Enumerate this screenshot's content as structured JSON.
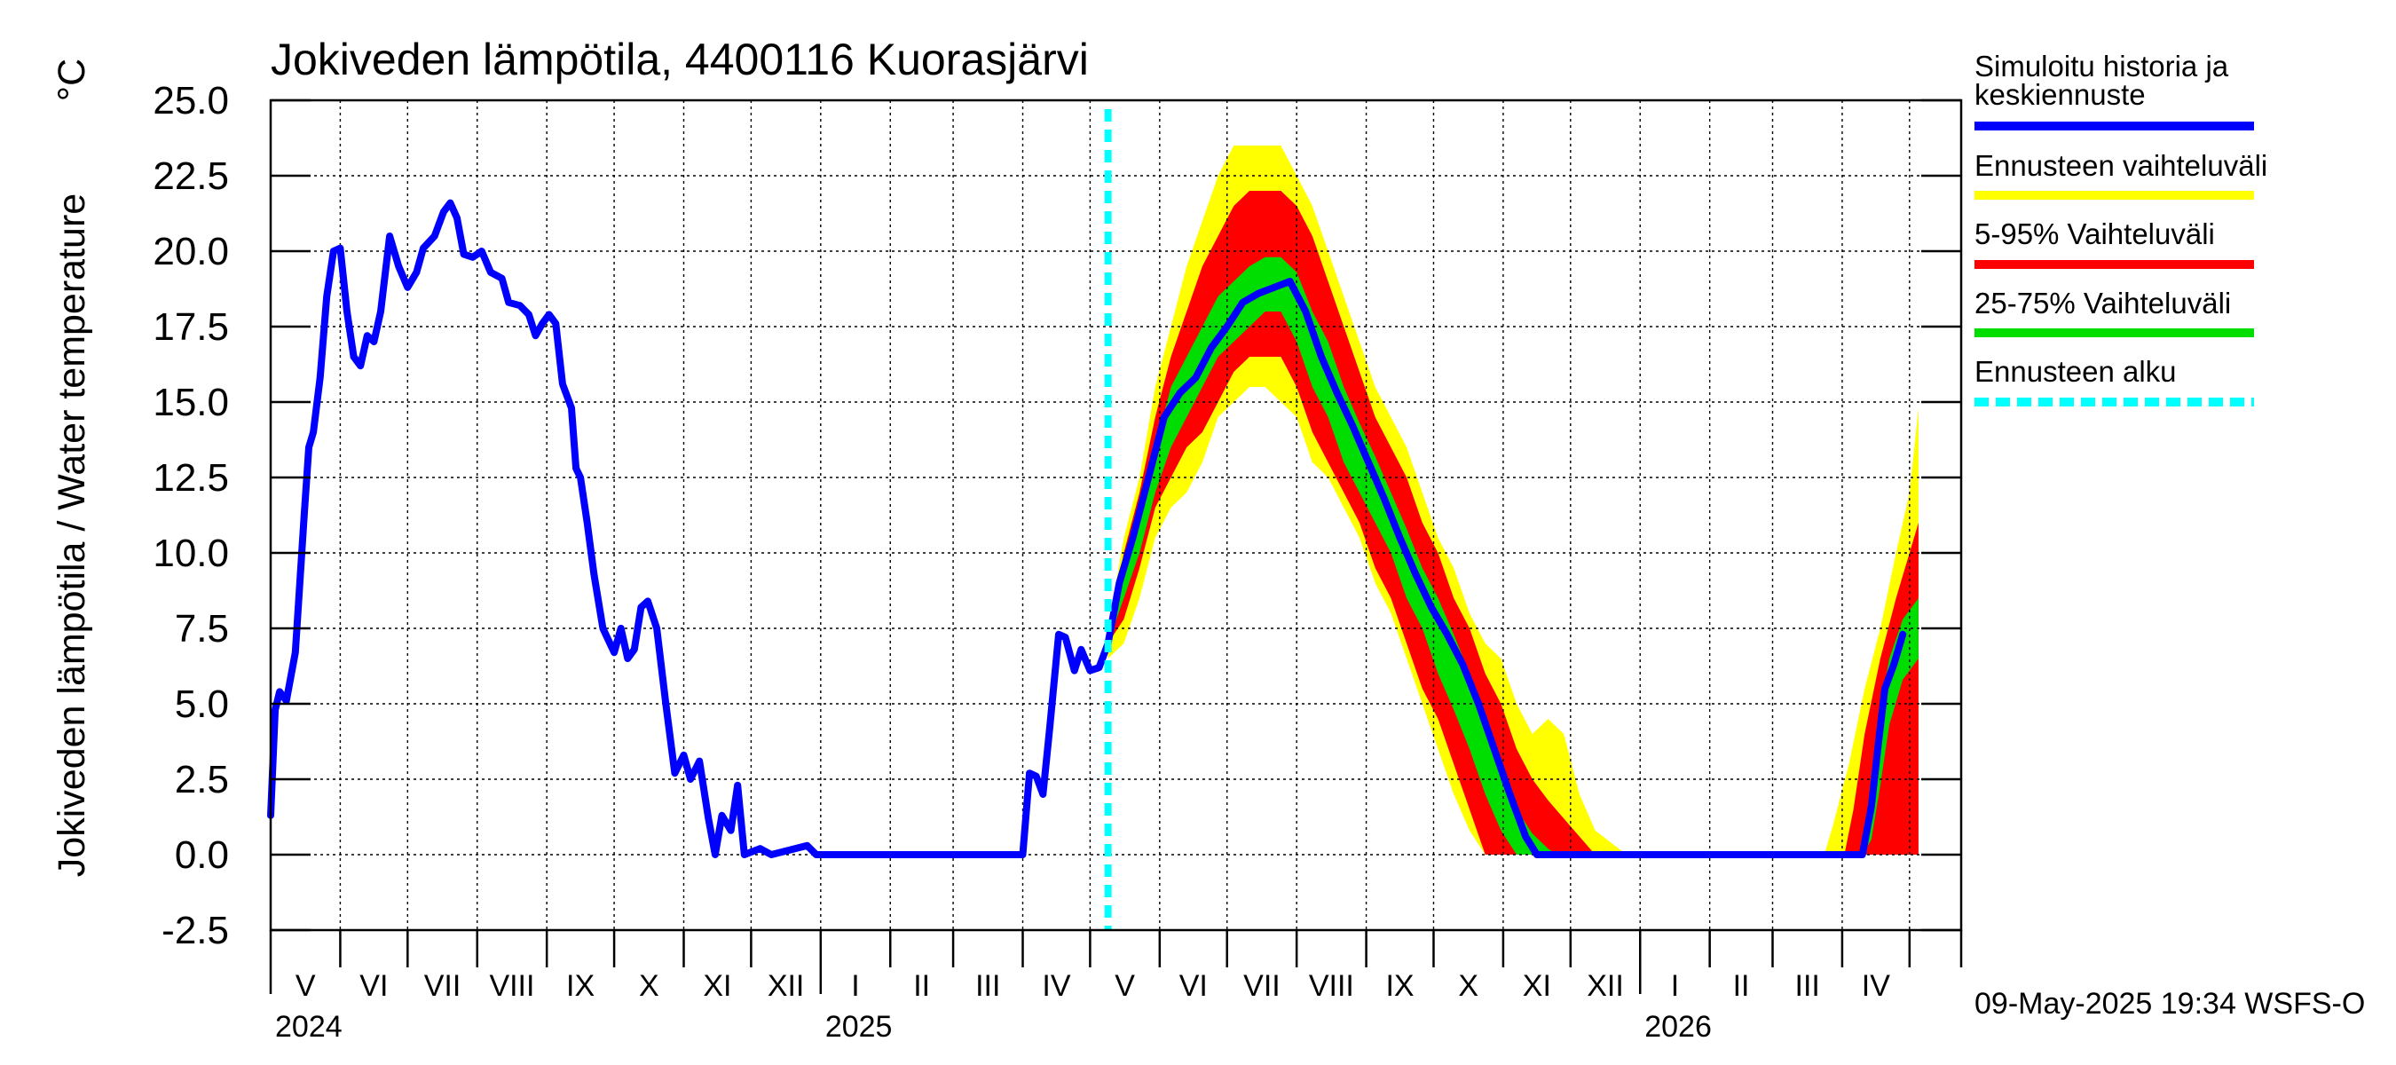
{
  "chart_data": {
    "type": "area",
    "title": "Jokiveden lämpötila, 4400116 Kuorasjärvi",
    "ylabel": "Jokiveden lämpötila / Water temperature",
    "yunit": "°C",
    "ylim": [
      -2.5,
      25.0
    ],
    "yticks": [
      "25.0",
      "22.5",
      "20.0",
      "17.5",
      "15.0",
      "12.5",
      "10.0",
      "7.5",
      "5.0",
      "2.5",
      "0.0",
      "-2.5"
    ],
    "xlim": [
      "2024-05-01",
      "2026-05-24"
    ],
    "month_labels": [
      "V",
      "VI",
      "VII",
      "VIII",
      "IX",
      "X",
      "XI",
      "XII",
      "I",
      "II",
      "III",
      "IV",
      "V",
      "VI",
      "VII",
      "VIII",
      "IX",
      "X",
      "XI",
      "XII",
      "I",
      "II",
      "III",
      "IV"
    ],
    "year_labels": [
      "2024",
      "2025",
      "2026"
    ],
    "grid": true,
    "legend_position": "right",
    "legend": [
      {
        "label": "Simuloitu historia ja keskiennuste",
        "color": "#0000ff",
        "style": "solid"
      },
      {
        "label": "Ennusteen vaihteluväli",
        "color": "#ffff00",
        "style": "solid"
      },
      {
        "label": "5-95% Vaihteluväli",
        "color": "#ff0000",
        "style": "solid"
      },
      {
        "label": "25-75% Vaihteluväli",
        "color": "#00dd00",
        "style": "solid"
      },
      {
        "label": "Ennusteen alku",
        "color": "#00ffff",
        "style": "dashed"
      }
    ],
    "forecast_start": "2025-05-09",
    "footer": "09-May-2025 19:34 WSFS-O",
    "series": [
      {
        "name": "Simuloitu historia ja keskiennuste",
        "points": [
          [
            "2024-05-01",
            1.3
          ],
          [
            "2024-05-03",
            4.8
          ],
          [
            "2024-05-05",
            5.4
          ],
          [
            "2024-05-08",
            5.1
          ],
          [
            "2024-05-12",
            6.7
          ],
          [
            "2024-05-16",
            11.3
          ],
          [
            "2024-05-18",
            13.5
          ],
          [
            "2024-05-20",
            14.0
          ],
          [
            "2024-05-23",
            15.8
          ],
          [
            "2024-05-26",
            18.5
          ],
          [
            "2024-05-29",
            20.0
          ],
          [
            "2024-06-01",
            20.1
          ],
          [
            "2024-06-04",
            18.0
          ],
          [
            "2024-06-07",
            16.5
          ],
          [
            "2024-06-10",
            16.2
          ],
          [
            "2024-06-13",
            17.2
          ],
          [
            "2024-06-16",
            17.0
          ],
          [
            "2024-06-19",
            18.0
          ],
          [
            "2024-06-23",
            20.5
          ],
          [
            "2024-06-27",
            19.5
          ],
          [
            "2024-07-01",
            18.8
          ],
          [
            "2024-07-05",
            19.3
          ],
          [
            "2024-07-08",
            20.1
          ],
          [
            "2024-07-13",
            20.5
          ],
          [
            "2024-07-17",
            21.3
          ],
          [
            "2024-07-20",
            21.6
          ],
          [
            "2024-07-23",
            21.1
          ],
          [
            "2024-07-26",
            19.9
          ],
          [
            "2024-07-30",
            19.8
          ],
          [
            "2024-08-03",
            20.0
          ],
          [
            "2024-08-07",
            19.3
          ],
          [
            "2024-08-12",
            19.1
          ],
          [
            "2024-08-15",
            18.3
          ],
          [
            "2024-08-20",
            18.2
          ],
          [
            "2024-08-24",
            17.9
          ],
          [
            "2024-08-27",
            17.2
          ],
          [
            "2024-08-30",
            17.6
          ],
          [
            "2024-09-02",
            17.9
          ],
          [
            "2024-09-05",
            17.6
          ],
          [
            "2024-09-08",
            15.6
          ],
          [
            "2024-09-12",
            14.8
          ],
          [
            "2024-09-14",
            12.8
          ],
          [
            "2024-09-16",
            12.5
          ],
          [
            "2024-09-19",
            11.0
          ],
          [
            "2024-09-22",
            9.3
          ],
          [
            "2024-09-26",
            7.5
          ],
          [
            "2024-10-01",
            6.7
          ],
          [
            "2024-10-04",
            7.5
          ],
          [
            "2024-10-07",
            6.5
          ],
          [
            "2024-10-10",
            6.8
          ],
          [
            "2024-10-13",
            8.2
          ],
          [
            "2024-10-16",
            8.4
          ],
          [
            "2024-10-20",
            7.5
          ],
          [
            "2024-10-24",
            5.0
          ],
          [
            "2024-10-28",
            2.7
          ],
          [
            "2024-11-01",
            3.3
          ],
          [
            "2024-11-04",
            2.5
          ],
          [
            "2024-11-08",
            3.1
          ],
          [
            "2024-11-12",
            1.2
          ],
          [
            "2024-11-15",
            0.0
          ],
          [
            "2024-11-18",
            1.3
          ],
          [
            "2024-11-22",
            0.8
          ],
          [
            "2024-11-25",
            2.3
          ],
          [
            "2024-11-28",
            0.0
          ],
          [
            "2024-12-05",
            0.2
          ],
          [
            "2024-12-10",
            0.0
          ],
          [
            "2024-12-26",
            0.3
          ],
          [
            "2024-12-30",
            0.0
          ],
          [
            "2025-04-01",
            0.0
          ],
          [
            "2025-04-04",
            2.7
          ],
          [
            "2025-04-07",
            2.6
          ],
          [
            "2025-04-10",
            2.0
          ],
          [
            "2025-04-13",
            4.2
          ],
          [
            "2025-04-17",
            7.3
          ],
          [
            "2025-04-20",
            7.2
          ],
          [
            "2025-04-24",
            6.1
          ],
          [
            "2025-04-27",
            6.8
          ],
          [
            "2025-05-01",
            6.1
          ],
          [
            "2025-05-05",
            6.2
          ],
          [
            "2025-05-09",
            7.0
          ],
          [
            "2025-05-14",
            9.0
          ],
          [
            "2025-05-20",
            10.5
          ],
          [
            "2025-05-27",
            12.5
          ],
          [
            "2025-06-03",
            14.5
          ],
          [
            "2025-06-10",
            15.3
          ],
          [
            "2025-06-17",
            15.8
          ],
          [
            "2025-06-24",
            16.8
          ],
          [
            "2025-07-01",
            17.5
          ],
          [
            "2025-07-08",
            18.3
          ],
          [
            "2025-07-15",
            18.6
          ],
          [
            "2025-07-22",
            18.8
          ],
          [
            "2025-07-29",
            19.0
          ],
          [
            "2025-08-05",
            18.0
          ],
          [
            "2025-08-12",
            16.5
          ],
          [
            "2025-08-19",
            15.3
          ],
          [
            "2025-08-26",
            14.2
          ],
          [
            "2025-09-02",
            13.0
          ],
          [
            "2025-09-09",
            11.8
          ],
          [
            "2025-09-16",
            10.5
          ],
          [
            "2025-09-23",
            9.3
          ],
          [
            "2025-09-30",
            8.2
          ],
          [
            "2025-10-07",
            7.3
          ],
          [
            "2025-10-14",
            6.3
          ],
          [
            "2025-10-21",
            5.0
          ],
          [
            "2025-10-28",
            3.5
          ],
          [
            "2025-11-04",
            2.0
          ],
          [
            "2025-11-11",
            0.6
          ],
          [
            "2025-11-16",
            0.0
          ],
          [
            "2026-04-10",
            0.0
          ],
          [
            "2026-04-14",
            1.6
          ],
          [
            "2026-04-17",
            3.6
          ],
          [
            "2026-04-20",
            5.5
          ],
          [
            "2026-04-24",
            6.3
          ],
          [
            "2026-04-28",
            7.3
          ]
        ]
      },
      {
        "name": "Ennusteen vaihteluväli",
        "bounds": [
          [
            "2025-05-09",
            6.5,
            7.5
          ],
          [
            "2025-05-16",
            7.0,
            10.5
          ],
          [
            "2025-05-23",
            8.5,
            12.5
          ],
          [
            "2025-05-30",
            10.5,
            15.5
          ],
          [
            "2025-06-06",
            11.5,
            17.5
          ],
          [
            "2025-06-13",
            12.0,
            19.5
          ],
          [
            "2025-06-20",
            13.0,
            21.0
          ],
          [
            "2025-06-27",
            14.5,
            22.5
          ],
          [
            "2025-07-04",
            15.0,
            23.5
          ],
          [
            "2025-07-11",
            15.5,
            23.5
          ],
          [
            "2025-07-18",
            15.5,
            23.5
          ],
          [
            "2025-07-25",
            15.0,
            23.5
          ],
          [
            "2025-08-01",
            14.5,
            22.5
          ],
          [
            "2025-08-08",
            13.0,
            21.5
          ],
          [
            "2025-08-15",
            12.5,
            20.0
          ],
          [
            "2025-08-22",
            11.5,
            18.5
          ],
          [
            "2025-08-29",
            10.5,
            17.0
          ],
          [
            "2025-09-05",
            9.0,
            15.5
          ],
          [
            "2025-09-12",
            8.0,
            14.5
          ],
          [
            "2025-09-19",
            6.5,
            13.5
          ],
          [
            "2025-09-26",
            5.0,
            12.0
          ],
          [
            "2025-10-03",
            3.5,
            10.5
          ],
          [
            "2025-10-10",
            2.0,
            9.5
          ],
          [
            "2025-10-17",
            0.8,
            8.0
          ],
          [
            "2025-10-24",
            0.0,
            7.0
          ],
          [
            "2025-10-31",
            0.0,
            6.5
          ],
          [
            "2025-11-07",
            0.0,
            5.0
          ],
          [
            "2025-11-14",
            0.0,
            4.0
          ],
          [
            "2025-11-21",
            0.0,
            4.5
          ],
          [
            "2025-11-28",
            0.0,
            4.0
          ],
          [
            "2025-12-05",
            0.0,
            2.0
          ],
          [
            "2025-12-12",
            0.0,
            0.8
          ],
          [
            "2025-12-19",
            0.0,
            0.4
          ],
          [
            "2025-12-26",
            0.0,
            0.0
          ],
          [
            "2026-03-24",
            0.0,
            0.0
          ],
          [
            "2026-03-28",
            0.0,
            1.0
          ],
          [
            "2026-04-04",
            0.0,
            3.0
          ],
          [
            "2026-04-11",
            0.0,
            5.5
          ],
          [
            "2026-04-18",
            0.5,
            7.5
          ],
          [
            "2026-04-25",
            1.5,
            10.0
          ],
          [
            "2026-05-01",
            3.0,
            12.0
          ],
          [
            "2026-05-05",
            4.0,
            14.8
          ]
        ]
      },
      {
        "name": "5-95% Vaihteluväli",
        "bounds": [
          [
            "2025-05-09",
            7.0,
            7.2
          ],
          [
            "2025-05-16",
            7.8,
            10.0
          ],
          [
            "2025-05-23",
            9.5,
            12.0
          ],
          [
            "2025-05-30",
            11.5,
            14.5
          ],
          [
            "2025-06-06",
            12.5,
            16.5
          ],
          [
            "2025-06-13",
            13.5,
            18.0
          ],
          [
            "2025-06-20",
            14.0,
            19.5
          ],
          [
            "2025-06-27",
            15.0,
            20.5
          ],
          [
            "2025-07-04",
            16.0,
            21.5
          ],
          [
            "2025-07-11",
            16.5,
            22.0
          ],
          [
            "2025-07-18",
            16.5,
            22.0
          ],
          [
            "2025-07-25",
            16.5,
            22.0
          ],
          [
            "2025-08-01",
            15.5,
            21.5
          ],
          [
            "2025-08-08",
            14.0,
            20.5
          ],
          [
            "2025-08-15",
            13.0,
            19.0
          ],
          [
            "2025-08-22",
            12.0,
            17.5
          ],
          [
            "2025-08-29",
            11.0,
            16.0
          ],
          [
            "2025-09-05",
            9.5,
            14.5
          ],
          [
            "2025-09-12",
            8.5,
            13.5
          ],
          [
            "2025-09-19",
            7.0,
            12.5
          ],
          [
            "2025-09-26",
            5.5,
            11.0
          ],
          [
            "2025-10-03",
            4.5,
            10.0
          ],
          [
            "2025-10-10",
            3.0,
            8.5
          ],
          [
            "2025-10-17",
            1.5,
            7.5
          ],
          [
            "2025-10-24",
            0.0,
            6.0
          ],
          [
            "2025-10-31",
            0.0,
            5.0
          ],
          [
            "2025-11-07",
            0.0,
            3.5
          ],
          [
            "2025-11-14",
            0.0,
            2.5
          ],
          [
            "2025-11-21",
            0.0,
            1.8
          ],
          [
            "2025-11-28",
            0.0,
            1.2
          ],
          [
            "2025-12-05",
            0.0,
            0.6
          ],
          [
            "2025-12-12",
            0.0,
            0.0
          ],
          [
            "2026-04-02",
            0.0,
            0.0
          ],
          [
            "2026-04-06",
            0.0,
            1.5
          ],
          [
            "2026-04-11",
            0.0,
            4.0
          ],
          [
            "2026-04-18",
            0.0,
            6.5
          ],
          [
            "2026-04-25",
            0.0,
            8.5
          ],
          [
            "2026-05-01",
            0.0,
            10.0
          ],
          [
            "2026-05-05",
            0.0,
            11.0
          ]
        ]
      },
      {
        "name": "25-75% Vaihteluväli",
        "bounds": [
          [
            "2025-05-09",
            7.0,
            7.1
          ],
          [
            "2025-05-16",
            8.5,
            9.5
          ],
          [
            "2025-05-23",
            10.0,
            11.5
          ],
          [
            "2025-05-30",
            12.0,
            13.5
          ],
          [
            "2025-06-06",
            13.5,
            15.5
          ],
          [
            "2025-06-13",
            14.5,
            16.5
          ],
          [
            "2025-06-20",
            15.5,
            17.5
          ],
          [
            "2025-06-27",
            16.5,
            18.5
          ],
          [
            "2025-07-04",
            17.0,
            19.0
          ],
          [
            "2025-07-11",
            17.5,
            19.5
          ],
          [
            "2025-07-18",
            18.0,
            19.8
          ],
          [
            "2025-07-25",
            18.0,
            19.8
          ],
          [
            "2025-08-01",
            17.0,
            19.3
          ],
          [
            "2025-08-08",
            15.5,
            18.0
          ],
          [
            "2025-08-15",
            14.5,
            17.0
          ],
          [
            "2025-08-22",
            13.0,
            15.5
          ],
          [
            "2025-08-29",
            12.0,
            14.3
          ],
          [
            "2025-09-05",
            11.0,
            13.2
          ],
          [
            "2025-09-12",
            10.0,
            12.0
          ],
          [
            "2025-09-19",
            8.5,
            10.8
          ],
          [
            "2025-09-26",
            7.5,
            9.5
          ],
          [
            "2025-10-03",
            6.0,
            8.5
          ],
          [
            "2025-10-10",
            4.8,
            7.3
          ],
          [
            "2025-10-17",
            3.5,
            6.0
          ],
          [
            "2025-10-24",
            2.0,
            4.5
          ],
          [
            "2025-10-31",
            0.8,
            3.2
          ],
          [
            "2025-11-07",
            0.0,
            1.5
          ],
          [
            "2025-11-14",
            0.0,
            0.7
          ],
          [
            "2025-11-21",
            0.0,
            0.2
          ],
          [
            "2025-11-25",
            0.0,
            0.0
          ],
          [
            "2026-04-10",
            0.0,
            0.0
          ],
          [
            "2026-04-14",
            0.5,
            2.6
          ],
          [
            "2026-04-18",
            2.3,
            4.8
          ],
          [
            "2026-04-22",
            4.3,
            6.5
          ],
          [
            "2026-04-28",
            5.8,
            7.8
          ],
          [
            "2026-05-05",
            6.5,
            8.5
          ]
        ]
      }
    ]
  }
}
